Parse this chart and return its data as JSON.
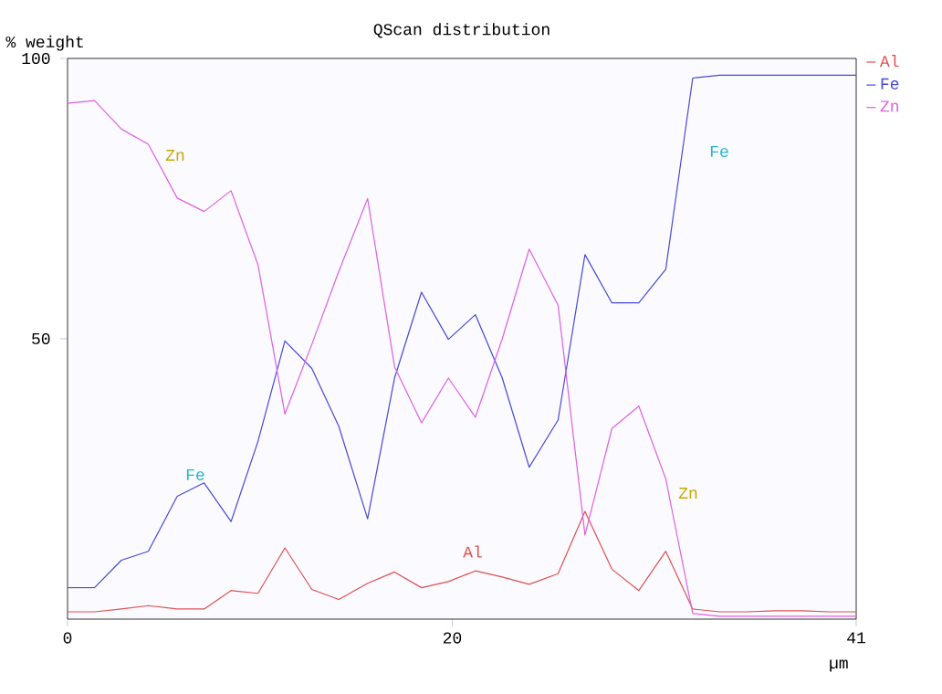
{
  "chart_data": {
    "type": "line",
    "title": "QScan distribution",
    "ylabel": "% weight",
    "xlabel": "µm",
    "x": [
      0,
      1.4,
      2.8,
      4.2,
      5.7,
      7.1,
      8.5,
      9.9,
      11.3,
      12.7,
      14.1,
      15.6,
      17,
      18.4,
      19.8,
      21.2,
      22.6,
      24,
      25.5,
      26.9,
      28.3,
      29.7,
      31.1,
      32.5,
      33.9,
      35.3,
      36.8,
      38.2,
      39.6,
      41
    ],
    "series": [
      {
        "name": "Al",
        "color": "#e05050",
        "values": [
          1.3,
          1.3,
          1.8,
          2.4,
          1.8,
          1.8,
          5.1,
          4.6,
          12.7,
          5.3,
          3.5,
          6.4,
          8.4,
          5.6,
          6.7,
          8.6,
          7.5,
          6.2,
          8.1,
          19.2,
          8.9,
          5.1,
          12.1,
          1.8,
          1.3,
          1.3,
          1.5,
          1.5,
          1.3,
          1.3
        ]
      },
      {
        "name": "Fe",
        "color": "#4848d8",
        "values": [
          5.6,
          5.6,
          10.5,
          12.1,
          21.9,
          24.3,
          17.4,
          31.7,
          49.6,
          44.7,
          34.4,
          17.9,
          43,
          58.3,
          49.9,
          54.3,
          43,
          27.1,
          35.5,
          65,
          56.4,
          56.4,
          62.4,
          96.5,
          97,
          97,
          97,
          97,
          97,
          97
        ]
      },
      {
        "name": "Zn",
        "color": "#e060e0",
        "values": [
          92,
          92.5,
          87.4,
          84.7,
          75.1,
          72.7,
          76.4,
          63.2,
          36.6,
          49,
          62,
          75,
          45,
          35,
          43,
          36,
          50,
          66,
          56,
          15,
          34,
          38,
          25,
          1,
          0.5,
          0.5,
          0.5,
          0.5,
          0.5,
          0.5
        ]
      }
    ],
    "annotations": [
      "Zn",
      "Fe",
      "Al",
      "Fe",
      "Zn"
    ],
    "xlim": [
      0,
      41
    ],
    "ylim": [
      0,
      100
    ],
    "xticks": [
      0,
      20,
      41
    ],
    "yticks": [
      50,
      100
    ],
    "legend": "top right",
    "grid": false,
    "marker": "none",
    "line_style": "solid"
  }
}
